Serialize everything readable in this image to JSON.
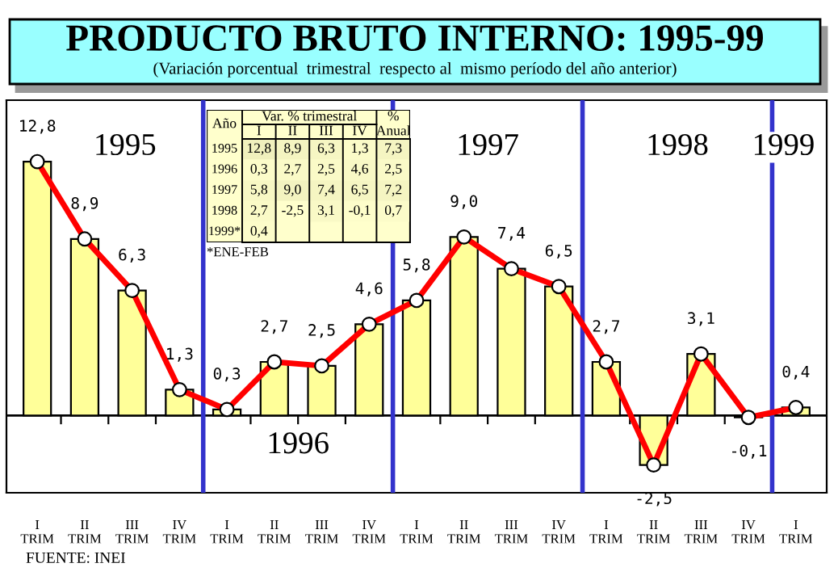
{
  "chart_data": [
    {
      "type": "bar",
      "title": "PRODUCTO BRUTO INTERNO: 1995-99",
      "subtitle": "(Variación porcentual  trimestral  respecto al  mismo período del año anterior)",
      "categories": [
        "I\nTRIM",
        "II\nTRIM",
        "III\nTRIM",
        "IV\nTRIM",
        "I\nTRIM",
        "II\nTRIM",
        "III\nTRIM",
        "IV\nTRIM",
        "I\nTRIM",
        "II\nTRIM",
        "III\nTRIM",
        "IV\nTRIM",
        "I\nTRIM",
        "II\nTRIM",
        "III\nTRIM",
        "IV\nTRIM",
        "I\nTRIM"
      ],
      "series": [
        {
          "type": "bar",
          "color": "#ffff99",
          "values": [
            12.8,
            8.9,
            6.3,
            1.3,
            0.3,
            2.7,
            2.5,
            4.6,
            5.8,
            9.0,
            7.4,
            6.5,
            2.7,
            -2.5,
            3.1,
            -0.1,
            0.4
          ],
          "value_labels": [
            "12,8",
            "8,9",
            "6,3",
            "1,3",
            "0,3",
            "2,7",
            "2,5",
            "4,6",
            "5,8",
            "9,0",
            "7,4",
            "6,5",
            "2,7",
            "-2,5",
            "3,1",
            "-0,1",
            "0,4"
          ]
        },
        {
          "type": "line",
          "color": "#ff0000",
          "values": [
            12.8,
            8.9,
            6.3,
            1.3,
            0.3,
            2.7,
            2.5,
            4.6,
            5.8,
            9.0,
            7.4,
            6.5,
            2.7,
            -2.5,
            3.1,
            -0.1,
            0.4
          ]
        }
      ],
      "marker": "circle",
      "line_style": "solid",
      "ylim": [
        -3.9,
        15.9
      ],
      "tick_labels": "x",
      "grid": false,
      "legend": false,
      "annotations": [
        "1995",
        "1996",
        "1997",
        "1998",
        "1999",
        "FUENTE: INEI"
      ]
    },
    {
      "type": "heatmap",
      "title": "Var. % trimestral",
      "ylabel": "Año",
      "color": "#ffffcc",
      "categories": [
        "I",
        "II",
        "III",
        "IV",
        "%\nAnual"
      ],
      "y_categories": [
        "1995",
        "1996",
        "1997",
        "1998",
        "1999*"
      ],
      "cells": [
        [
          12.8,
          8.9,
          6.3,
          1.3,
          7.3
        ],
        [
          0.3,
          2.7,
          2.5,
          4.6,
          2.5
        ],
        [
          5.8,
          9.0,
          7.4,
          6.5,
          7.2
        ],
        [
          2.7,
          -2.5,
          3.1,
          -0.1,
          0.7
        ],
        [
          0.4,
          null,
          null,
          null,
          null
        ]
      ],
      "cell_labels": [
        [
          "12,8",
          "8,9",
          "6,3",
          "1,3",
          "7,3"
        ],
        [
          "0,3",
          "2,7",
          "2,5",
          "4,6",
          "2,5"
        ],
        [
          "5,8",
          "9,0",
          "7,4",
          "6,5",
          "7,2"
        ],
        [
          "2,7",
          "-2,5",
          "3,1",
          "-0,1",
          "0,7"
        ],
        [
          "0,4",
          null,
          null,
          null,
          null
        ]
      ],
      "annotations": [
        "*ENE-FEB"
      ]
    }
  ]
}
